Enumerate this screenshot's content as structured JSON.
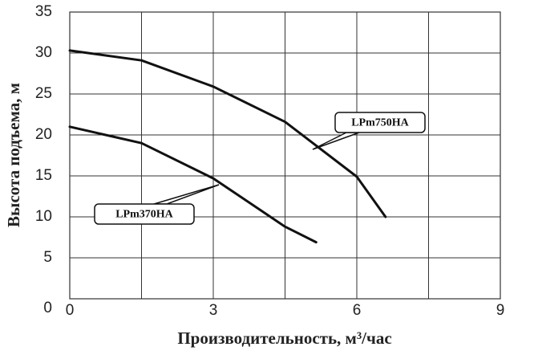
{
  "chart_data": {
    "type": "line",
    "x_label": "Производительность, м³/час",
    "y_label": "Высота подъема, м",
    "xlim": [
      0,
      9
    ],
    "xticks": [
      0,
      3,
      6,
      9
    ],
    "x_minor_grid": [
      1.5,
      4.5,
      7.5
    ],
    "ylim": [
      0,
      35
    ],
    "yticks": [
      0,
      5,
      10,
      15,
      20,
      25,
      30,
      35
    ],
    "grid": true,
    "series": [
      {
        "name": "LPm750HA",
        "color": "#111111",
        "x": [
          0,
          1.5,
          3,
          4.5,
          6,
          6.6
        ],
        "values": [
          30.3,
          29.1,
          25.9,
          21.6,
          14.9,
          10
        ]
      },
      {
        "name": "LPm370HA",
        "color": "#111111",
        "x": [
          0,
          1.5,
          3,
          4.5,
          5.15
        ],
        "values": [
          21.0,
          19.0,
          14.7,
          8.8,
          6.9
        ]
      }
    ]
  }
}
